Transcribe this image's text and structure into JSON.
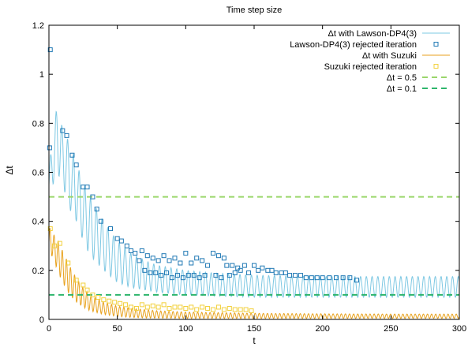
{
  "chart_data": {
    "type": "line",
    "title": "Time step size",
    "xlabel": "t",
    "ylabel": "Δt",
    "xlim": [
      0,
      300
    ],
    "ylim": [
      0,
      1.2
    ],
    "xticks": [
      "0",
      "50",
      "100",
      "150",
      "200",
      "250",
      "300"
    ],
    "yticks": [
      "0",
      "0.2",
      "0.4",
      "0.6",
      "0.8",
      "1",
      "1.2"
    ],
    "xtick_values": [
      0,
      50,
      100,
      150,
      200,
      250,
      300
    ],
    "ytick_values": [
      0,
      0.2,
      0.4,
      0.6,
      0.8,
      1.0,
      1.2
    ],
    "grid": false,
    "legend_position": "top-right",
    "legend": [
      {
        "label": "Δt with Lawson-DP4(3)",
        "kind": "line",
        "color": "#7ec8e3"
      },
      {
        "label": "Lawson-DP4(3) rejected iteration",
        "kind": "marker",
        "color": "#1f78b4"
      },
      {
        "label": "Δt with Suzuki",
        "kind": "line",
        "color": "#e8a21e"
      },
      {
        "label": "Suzuki rejected iteration",
        "kind": "marker",
        "color": "#f2d03b"
      },
      {
        "label": "Δt = 0.5",
        "kind": "dashed",
        "color": "#9ad66b"
      },
      {
        "label": "Δt = 0.1",
        "kind": "dashed",
        "color": "#2db56c"
      }
    ],
    "series": [
      {
        "name": "Δt with Lawson-DP4(3)",
        "style": "oscillating-line",
        "color": "#7ec8e3",
        "x": [
          0,
          3,
          6,
          10,
          15,
          20,
          25,
          30,
          40,
          50,
          60,
          70,
          80,
          100,
          120,
          150,
          200,
          250,
          300
        ],
        "upper": [
          0.6,
          0.78,
          0.87,
          0.78,
          0.72,
          0.64,
          0.56,
          0.5,
          0.4,
          0.32,
          0.27,
          0.24,
          0.22,
          0.2,
          0.19,
          0.18,
          0.175,
          0.175,
          0.175
        ],
        "lower": [
          0.5,
          0.55,
          0.6,
          0.55,
          0.45,
          0.4,
          0.32,
          0.26,
          0.2,
          0.15,
          0.13,
          0.12,
          0.11,
          0.1,
          0.095,
          0.09,
          0.09,
          0.09,
          0.09
        ],
        "period": 4.2
      },
      {
        "name": "Lawson-DP4(3) rejected iteration",
        "style": "markers",
        "color": "#1f78b4",
        "x": [
          0.5,
          1,
          10,
          13,
          17,
          20,
          25,
          28,
          32,
          35,
          38,
          45,
          50,
          53,
          57,
          60,
          63,
          66,
          68,
          70,
          72,
          74,
          76,
          78,
          80,
          82,
          84,
          86,
          88,
          90,
          92,
          94,
          96,
          98,
          100,
          102,
          104,
          106,
          108,
          110,
          112,
          114,
          116,
          120,
          122,
          124,
          126,
          128,
          130,
          132,
          134,
          136,
          138,
          140,
          143,
          146,
          150,
          153,
          156,
          160,
          163,
          166,
          170,
          173,
          176,
          180,
          184,
          188,
          192,
          196,
          200,
          205,
          210,
          215,
          220,
          225
        ],
        "y": [
          0.7,
          1.1,
          0.77,
          0.75,
          0.67,
          0.63,
          0.54,
          0.54,
          0.5,
          0.45,
          0.4,
          0.37,
          0.33,
          0.32,
          0.3,
          0.28,
          0.27,
          0.24,
          0.28,
          0.2,
          0.26,
          0.19,
          0.25,
          0.19,
          0.24,
          0.18,
          0.26,
          0.19,
          0.24,
          0.17,
          0.25,
          0.18,
          0.23,
          0.17,
          0.27,
          0.18,
          0.23,
          0.18,
          0.25,
          0.17,
          0.24,
          0.18,
          0.22,
          0.27,
          0.18,
          0.26,
          0.17,
          0.25,
          0.22,
          0.18,
          0.22,
          0.19,
          0.21,
          0.2,
          0.22,
          0.19,
          0.22,
          0.2,
          0.21,
          0.2,
          0.2,
          0.19,
          0.19,
          0.19,
          0.18,
          0.18,
          0.18,
          0.17,
          0.17,
          0.17,
          0.17,
          0.17,
          0.17,
          0.17,
          0.17,
          0.16
        ]
      },
      {
        "name": "Δt with Suzuki",
        "style": "oscillating-line",
        "color": "#e8a21e",
        "x": [
          0,
          3,
          6,
          10,
          15,
          20,
          25,
          30,
          40,
          50,
          60,
          70,
          80,
          100,
          120,
          150,
          200,
          250,
          300
        ],
        "upper": [
          0.38,
          0.35,
          0.33,
          0.28,
          0.22,
          0.17,
          0.13,
          0.1,
          0.07,
          0.055,
          0.045,
          0.04,
          0.035,
          0.03,
          0.028,
          0.025,
          0.023,
          0.022,
          0.022
        ],
        "lower": [
          0.25,
          0.26,
          0.2,
          0.15,
          0.1,
          0.07,
          0.05,
          0.035,
          0.02,
          0.012,
          0.008,
          0.006,
          0.005,
          0.004,
          0.004,
          0.004,
          0.004,
          0.004,
          0.004
        ],
        "period": 3.0
      },
      {
        "name": "Suzuki rejected iteration",
        "style": "markers",
        "color": "#f2d03b",
        "x": [
          1,
          4,
          8,
          14,
          20,
          25,
          28,
          32,
          36,
          40,
          44,
          48,
          52,
          56,
          60,
          64,
          68,
          72,
          76,
          80,
          84,
          88,
          92,
          96,
          100,
          104,
          108,
          112,
          116,
          120,
          124,
          128,
          132,
          136,
          140,
          144,
          148
        ],
        "y": [
          0.37,
          0.3,
          0.31,
          0.23,
          0.16,
          0.14,
          0.12,
          0.1,
          0.09,
          0.08,
          0.075,
          0.07,
          0.065,
          0.06,
          0.05,
          0.045,
          0.06,
          0.05,
          0.055,
          0.05,
          0.06,
          0.045,
          0.05,
          0.05,
          0.045,
          0.05,
          0.04,
          0.05,
          0.045,
          0.04,
          0.05,
          0.04,
          0.045,
          0.04,
          0.04,
          0.04,
          0.035
        ]
      },
      {
        "name": "Δt = 0.5",
        "style": "dashed",
        "color": "#9ad66b",
        "x": [
          0,
          300
        ],
        "y": [
          0.5,
          0.5
        ]
      },
      {
        "name": "Δt = 0.1",
        "style": "dashed",
        "color": "#2db56c",
        "x": [
          0,
          300
        ],
        "y": [
          0.1,
          0.1
        ]
      }
    ]
  }
}
